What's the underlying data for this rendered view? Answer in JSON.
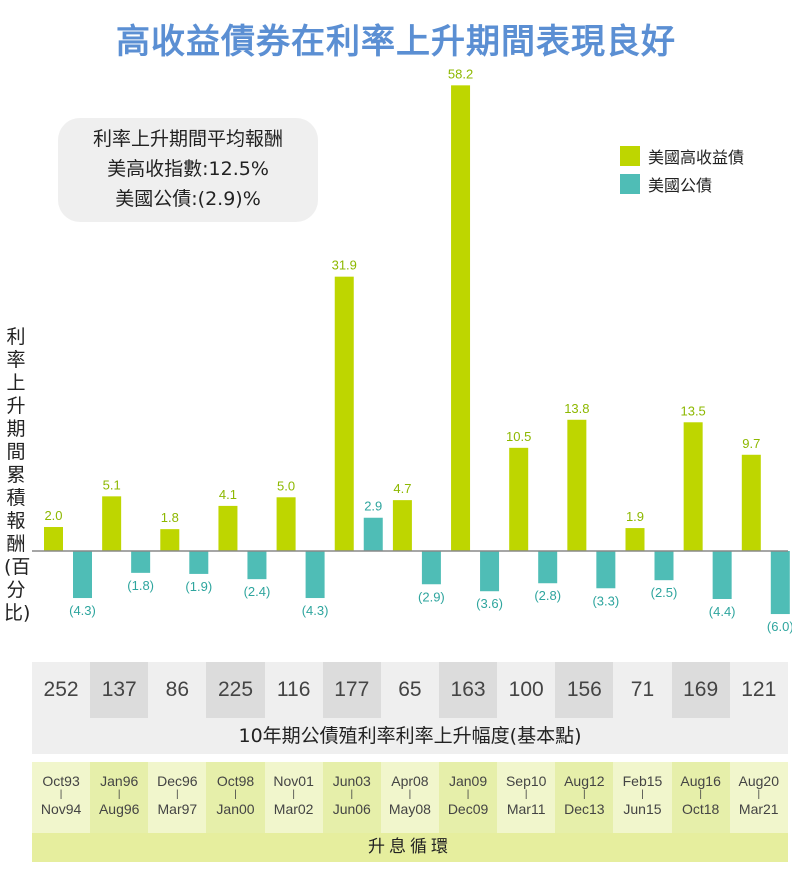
{
  "title": "高收益債券在利率上升期間表現良好",
  "note": {
    "heading": "利率上升期間平均報酬",
    "line1": "美高收指數:12.5%",
    "line2": "美國公債:(2.9)%"
  },
  "legend": [
    {
      "label": "美國高收益債",
      "color": "#bed600"
    },
    {
      "label": "美國公債",
      "color": "#4fbdb6"
    }
  ],
  "colors": {
    "title": "#5b8fd3",
    "high_yield": "#bed600",
    "treasury": "#4fbdb6",
    "high_yield_label": "#8db800",
    "treasury_label": "#2ea59e"
  },
  "chart_data": {
    "type": "bar",
    "title": "高收益債券在利率上升期間表現良好",
    "ylabel": "利率上升期間累積報酬(百分比)",
    "categories": [
      "Oct93-Nov94",
      "Jan96-Aug96",
      "Dec96-Mar97",
      "Oct98-Jan00",
      "Nov01-Mar02",
      "Jun03-Jun06",
      "Apr08-May08",
      "Jan09-Dec09",
      "Sep10-Mar11",
      "Aug12-Dec13",
      "Feb15-Jun15",
      "Aug16-Oct18",
      "Aug20-Mar21"
    ],
    "series": [
      {
        "name": "美國高收益債",
        "values": [
          2.0,
          5.1,
          1.8,
          4.1,
          5.0,
          31.9,
          4.7,
          58.2,
          10.5,
          13.8,
          1.9,
          13.5,
          9.7
        ],
        "labels": [
          "2.0",
          "5.1",
          "1.8",
          "4.1",
          "5.0",
          "31.9",
          "4.7",
          "58.2",
          "10.5",
          "13.8",
          "1.9",
          "13.5",
          "9.7"
        ]
      },
      {
        "name": "美國公債",
        "values": [
          -4.3,
          -1.8,
          -1.9,
          -2.4,
          -4.3,
          2.9,
          -2.9,
          -3.6,
          -2.8,
          -3.3,
          -2.5,
          -4.4,
          -6.0
        ],
        "labels": [
          "(4.3)",
          "(1.8)",
          "(1.9)",
          "(2.4)",
          "(4.3)",
          "2.9",
          "(2.9)",
          "(3.6)",
          "(2.8)",
          "(3.3)",
          "(2.5)",
          "(4.4)",
          "(6.0)"
        ]
      }
    ],
    "grid": false,
    "legend_position": "top-right",
    "scale": "compressed (non-linear)"
  },
  "table": {
    "bps_label": "10年期公債殖利率利率上升幅度(基本點)",
    "bps": [
      "252",
      "137",
      "86",
      "225",
      "116",
      "177",
      "65",
      "163",
      "100",
      "156",
      "71",
      "169",
      "121"
    ],
    "cycle_label": "升息循環",
    "cycles": [
      {
        "start": "Oct93",
        "end": "Nov94"
      },
      {
        "start": "Jan96",
        "end": "Aug96"
      },
      {
        "start": "Dec96",
        "end": "Mar97"
      },
      {
        "start": "Oct98",
        "end": "Jan00"
      },
      {
        "start": "Nov01",
        "end": "Mar02"
      },
      {
        "start": "Jun03",
        "end": "Jun06"
      },
      {
        "start": "Apr08",
        "end": "May08"
      },
      {
        "start": "Jan09",
        "end": "Dec09"
      },
      {
        "start": "Sep10",
        "end": "Mar11"
      },
      {
        "start": "Aug12",
        "end": "Dec13"
      },
      {
        "start": "Feb15",
        "end": "Jun15"
      },
      {
        "start": "Aug16",
        "end": "Oct18"
      },
      {
        "start": "Aug20",
        "end": "Mar21"
      }
    ]
  }
}
